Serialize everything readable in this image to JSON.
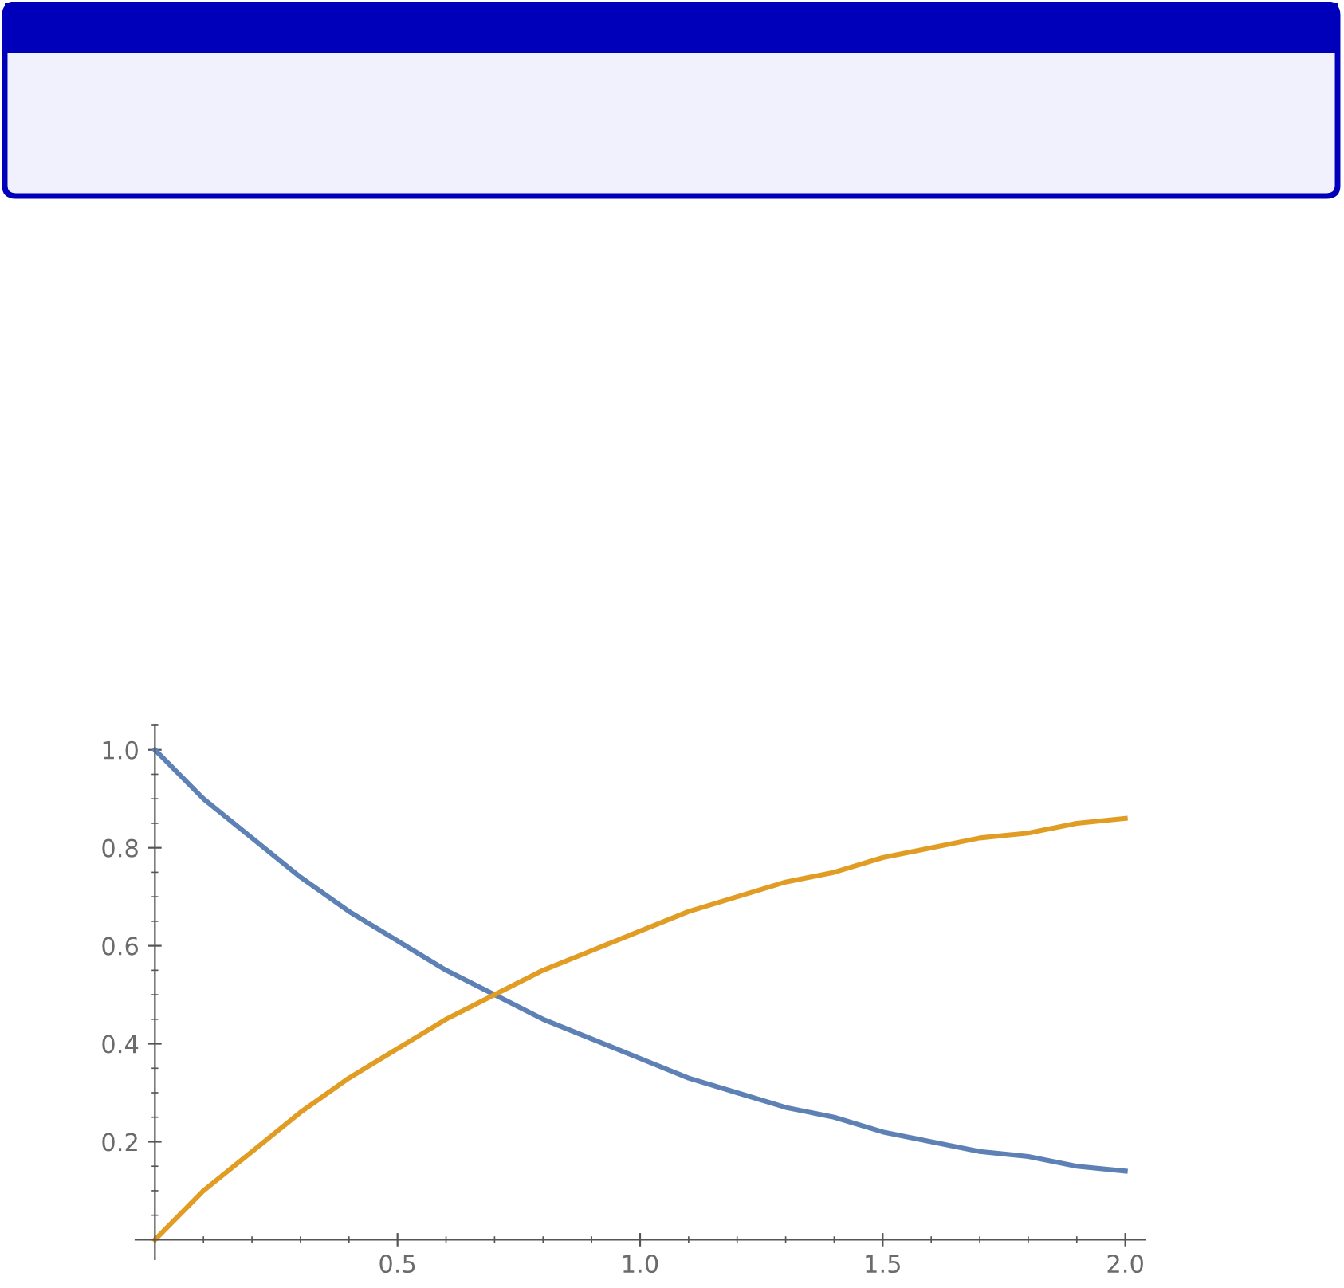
{
  "chart_data": {
    "type": "line",
    "x": [
      0,
      0.1,
      0.2,
      0.3,
      0.4,
      0.5,
      0.6,
      0.7,
      0.8,
      0.9,
      1.0,
      1.1,
      1.2,
      1.3,
      1.4,
      1.5,
      1.6,
      1.7,
      1.8,
      1.9,
      2.0
    ],
    "series": [
      {
        "color": "#5e81b5",
        "values": [
          1.0,
          0.9,
          0.82,
          0.74,
          0.67,
          0.61,
          0.55,
          0.5,
          0.45,
          0.41,
          0.37,
          0.33,
          0.3,
          0.27,
          0.25,
          0.22,
          0.2,
          0.18,
          0.17,
          0.15,
          0.14
        ]
      },
      {
        "color": "#e19c24",
        "values": [
          0.0,
          0.1,
          0.18,
          0.26,
          0.33,
          0.39,
          0.45,
          0.5,
          0.55,
          0.59,
          0.63,
          0.67,
          0.7,
          0.73,
          0.75,
          0.78,
          0.8,
          0.82,
          0.83,
          0.85,
          0.86
        ]
      }
    ],
    "xlim": [
      -0.04,
      2.04
    ],
    "ylim": [
      -0.04,
      1.05
    ],
    "xticks": [
      0.5,
      {
        "value": 1.0,
        "label": "1.0"
      },
      1.5,
      {
        "value": 2.0,
        "label": "2.0"
      }
    ],
    "yticks": [
      0.2,
      0.4,
      0.6,
      0.8,
      {
        "value": 1.0,
        "label": "1.0"
      }
    ],
    "grid": false,
    "marker": "none",
    "line_style": "solid"
  }
}
